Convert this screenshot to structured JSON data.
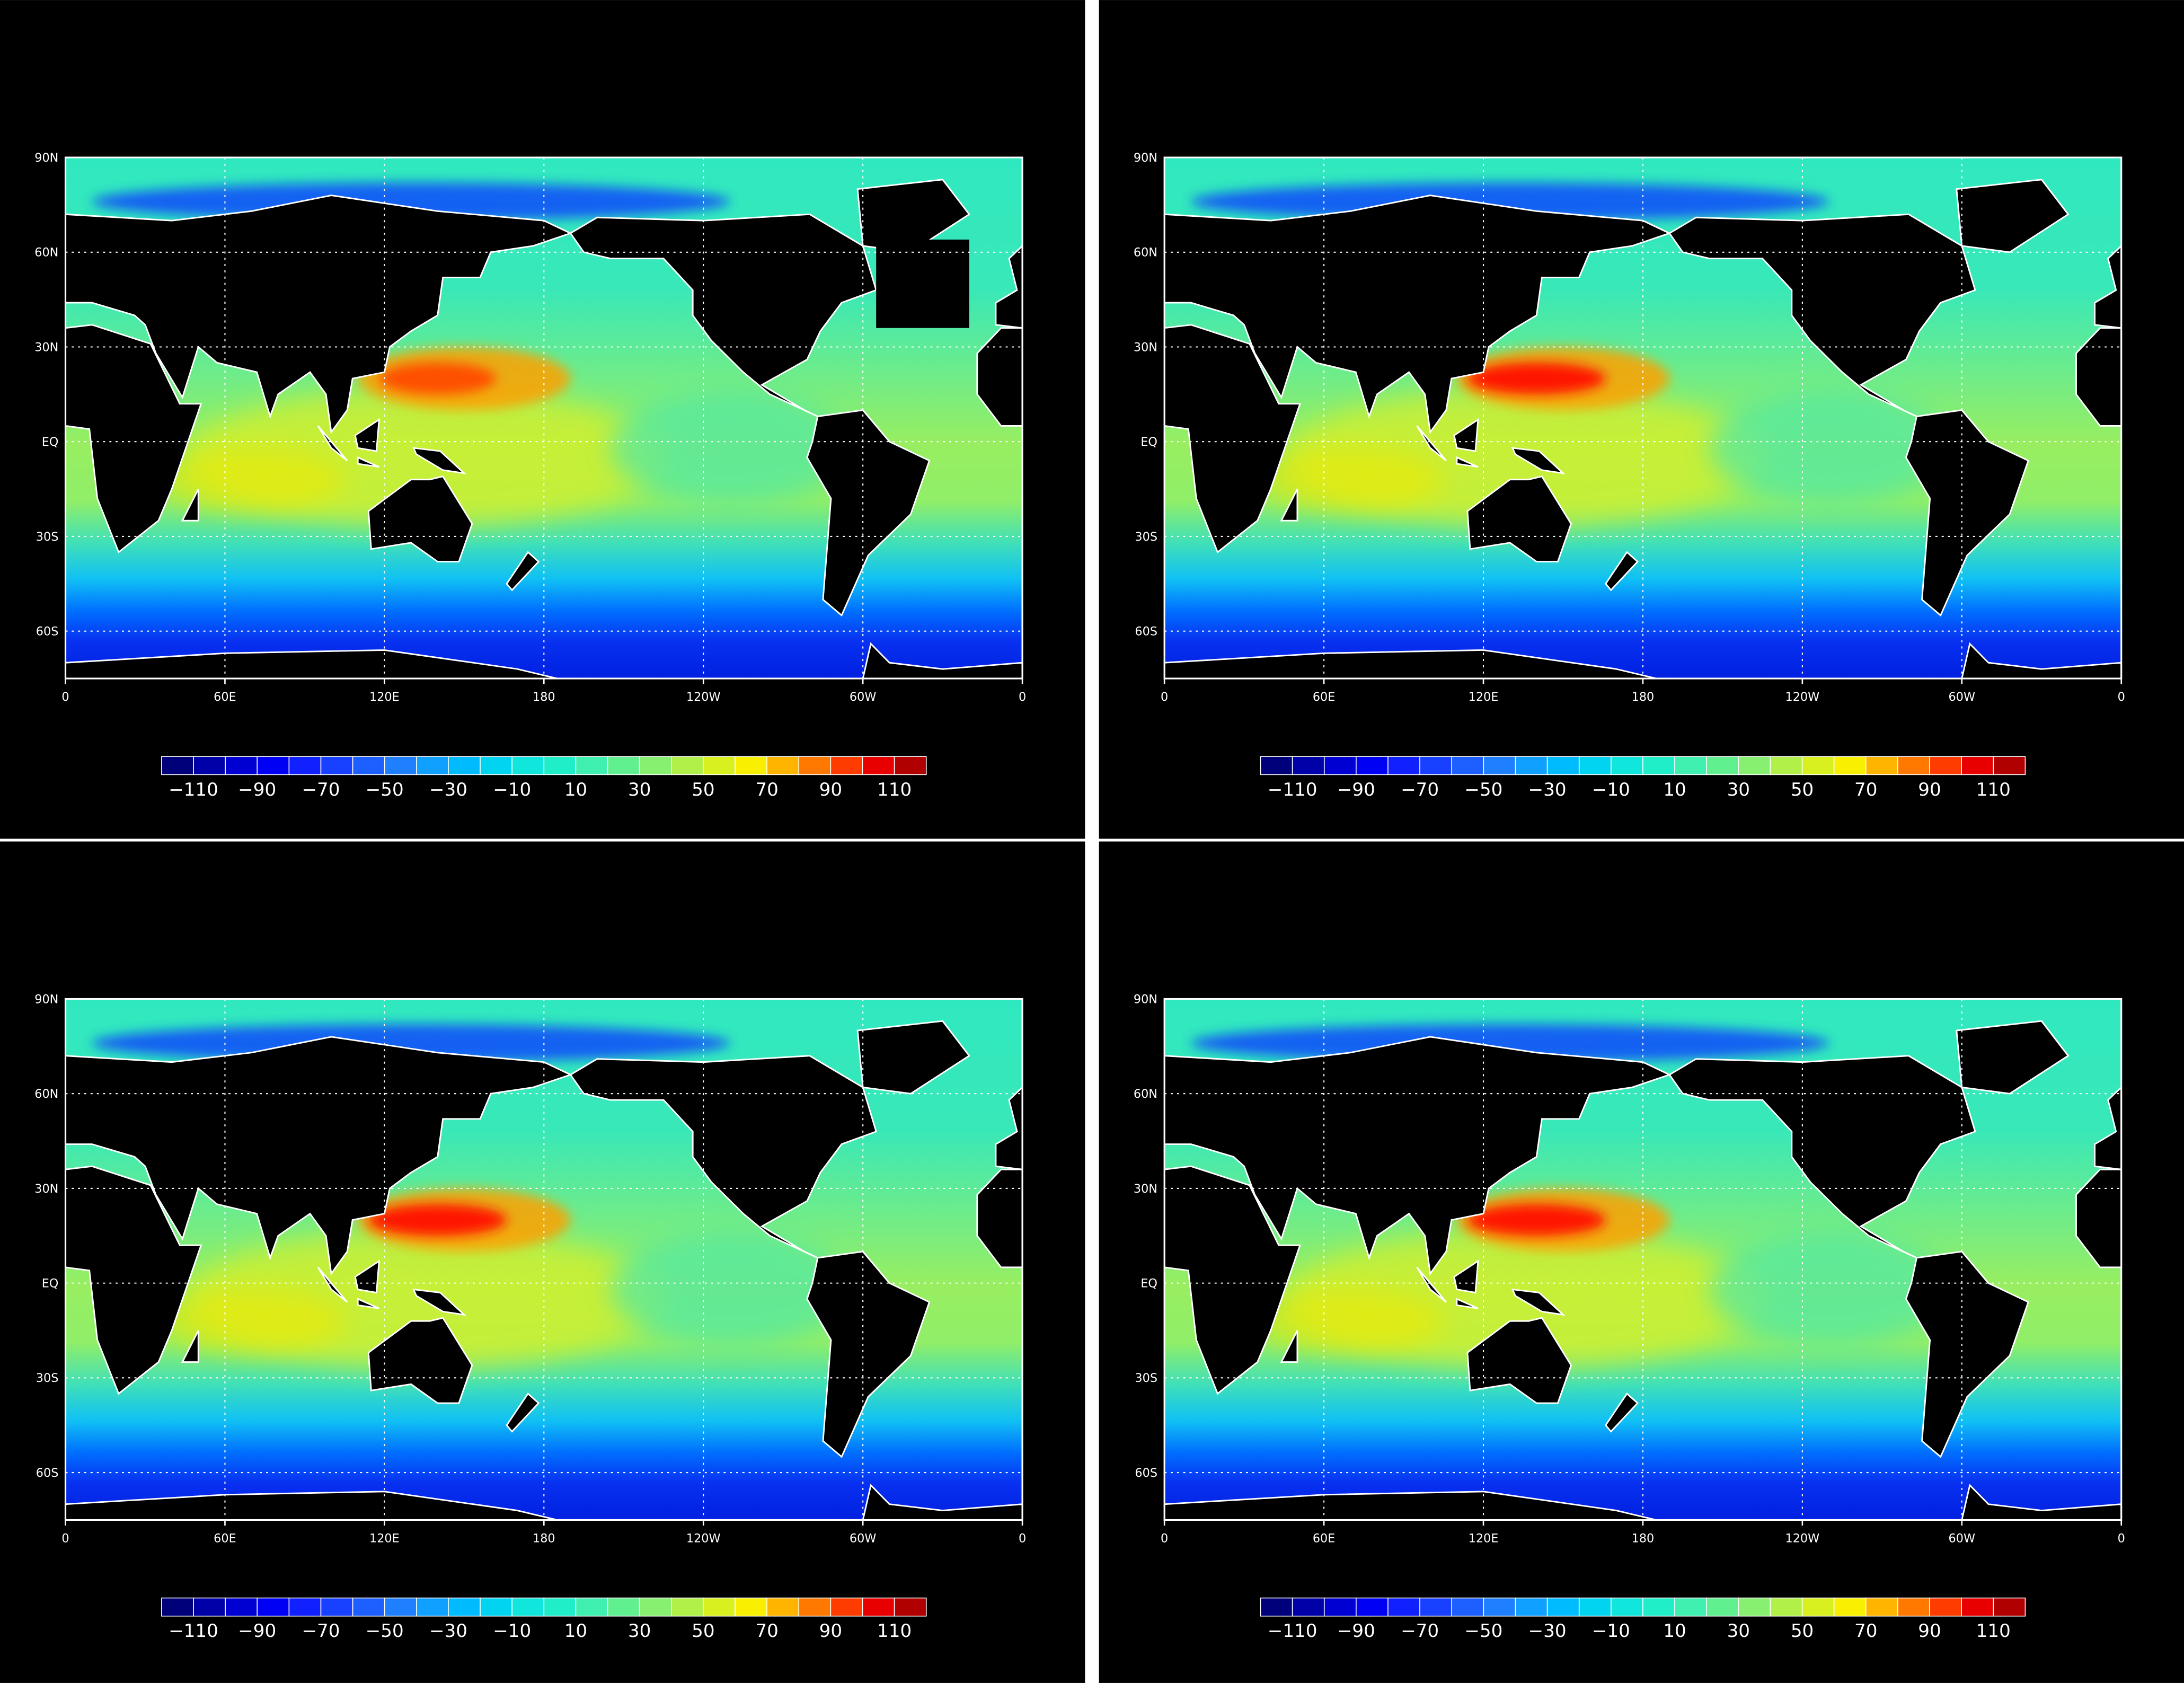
{
  "axes": {
    "lat_labels": [
      "90N",
      "60N",
      "30N",
      "EQ",
      "30S",
      "60S"
    ],
    "lon_labels": [
      "0",
      "60E",
      "120E",
      "180",
      "120W",
      "60W",
      "0"
    ]
  },
  "colorbar": {
    "levels": [
      -120,
      -110,
      -100,
      -90,
      -80,
      -70,
      -60,
      -50,
      -40,
      -30,
      -20,
      -10,
      0,
      10,
      20,
      30,
      40,
      50,
      60,
      70,
      80,
      90,
      100,
      110,
      120
    ],
    "colors": [
      "#00007a",
      "#0000a8",
      "#0000d2",
      "#0000f5",
      "#1020ff",
      "#1840ff",
      "#1e60ff",
      "#1e80ff",
      "#10a0ff",
      "#00bcff",
      "#00d4f0",
      "#10e6dc",
      "#20eec8",
      "#40f0b0",
      "#60f090",
      "#88f070",
      "#b0f048",
      "#d8f020",
      "#f8f000",
      "#ffb400",
      "#ff7800",
      "#ff3c00",
      "#e80000",
      "#b00000"
    ],
    "ticks": [
      {
        "value": -110,
        "label": "−110"
      },
      {
        "value": -90,
        "label": "−90"
      },
      {
        "value": -70,
        "label": "−70"
      },
      {
        "value": -50,
        "label": "−50"
      },
      {
        "value": -30,
        "label": "−30"
      },
      {
        "value": -10,
        "label": "−10"
      },
      10,
      30,
      50,
      70,
      90,
      110
    ]
  }
}
